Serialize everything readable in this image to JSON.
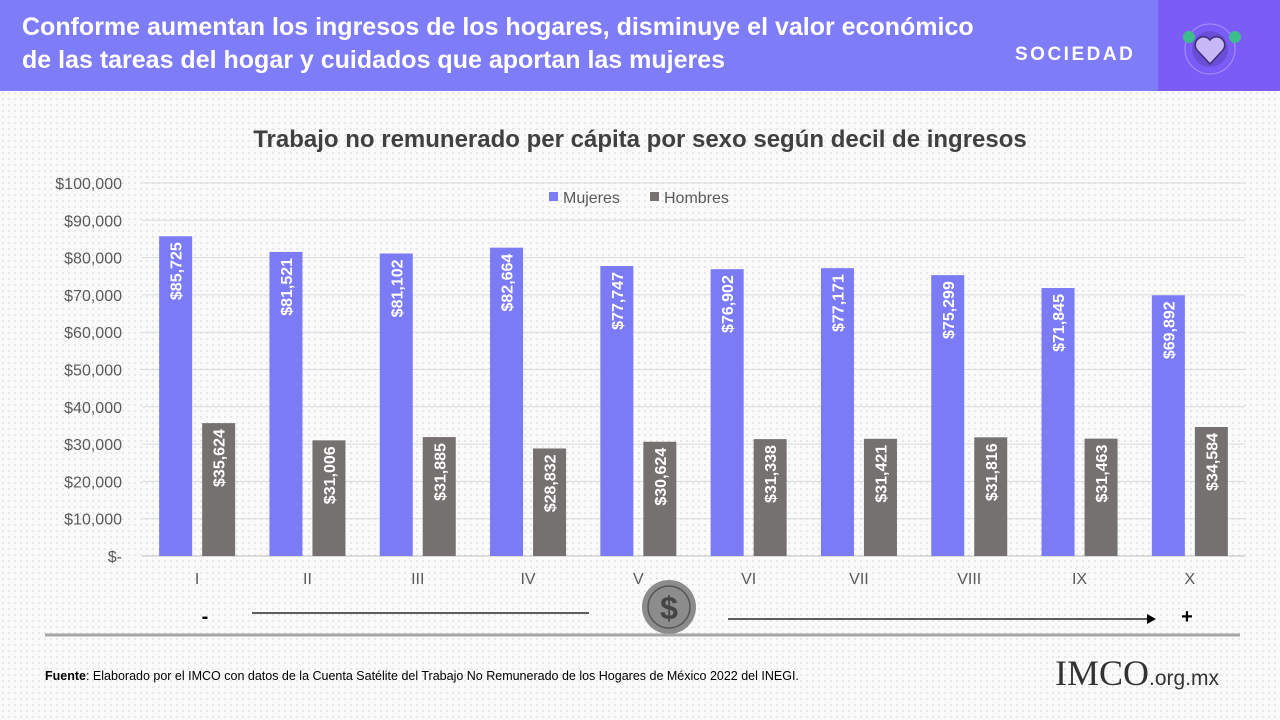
{
  "header": {
    "title": "Conforme aumentan los ingresos de los hogares, disminuye el valor económico de las tareas del hogar y cuidados que aportan las mujeres",
    "section": "SOCIEDAD",
    "icon": "handshake-heart-icon"
  },
  "chart_data": {
    "type": "bar",
    "title": "Trabajo no remunerado per cápita por sexo según decil de ingresos",
    "categories": [
      "I",
      "II",
      "III",
      "IV",
      "V",
      "VI",
      "VII",
      "VIII",
      "IX",
      "X"
    ],
    "series": [
      {
        "name": "Mujeres",
        "color": "#7b7bf6",
        "values": [
          85725,
          81521,
          81102,
          82664,
          77747,
          76902,
          77171,
          75299,
          71845,
          69892
        ],
        "labels": [
          "$85,725",
          "$81,521",
          "$81,102",
          "$82,664",
          "$77,747",
          "$76,902",
          "$77,171",
          "$75,299",
          "$71,845",
          "$69,892"
        ]
      },
      {
        "name": "Hombres",
        "color": "#767171",
        "values": [
          35624,
          31006,
          31885,
          28832,
          30624,
          31338,
          31421,
          31816,
          31463,
          34584
        ],
        "labels": [
          "$35,624",
          "$31,006",
          "$31,885",
          "$28,832",
          "$30,624",
          "$31,338",
          "$31,421",
          "$31,816",
          "$31,463",
          "$34,584"
        ]
      }
    ],
    "ylim": [
      0,
      100000
    ],
    "yticks": [
      "$-",
      "$10,000",
      "$20,000",
      "$30,000",
      "$40,000",
      "$50,000",
      "$60,000",
      "$70,000",
      "$80,000",
      "$90,000",
      "$100,000"
    ],
    "grid": true,
    "legend": "top-center",
    "annotation": {
      "low": "-",
      "high": "+",
      "icon": "dollar-coin-icon"
    }
  },
  "footer": {
    "source_label": "Fuente",
    "source_text": ": Elaborado por el IMCO con datos de la Cuenta Satélite del Trabajo No Remunerado de los Hogares de México 2022 del INEGI.",
    "logo_text": "IMCO",
    "logo_domain": ".org.mx"
  }
}
